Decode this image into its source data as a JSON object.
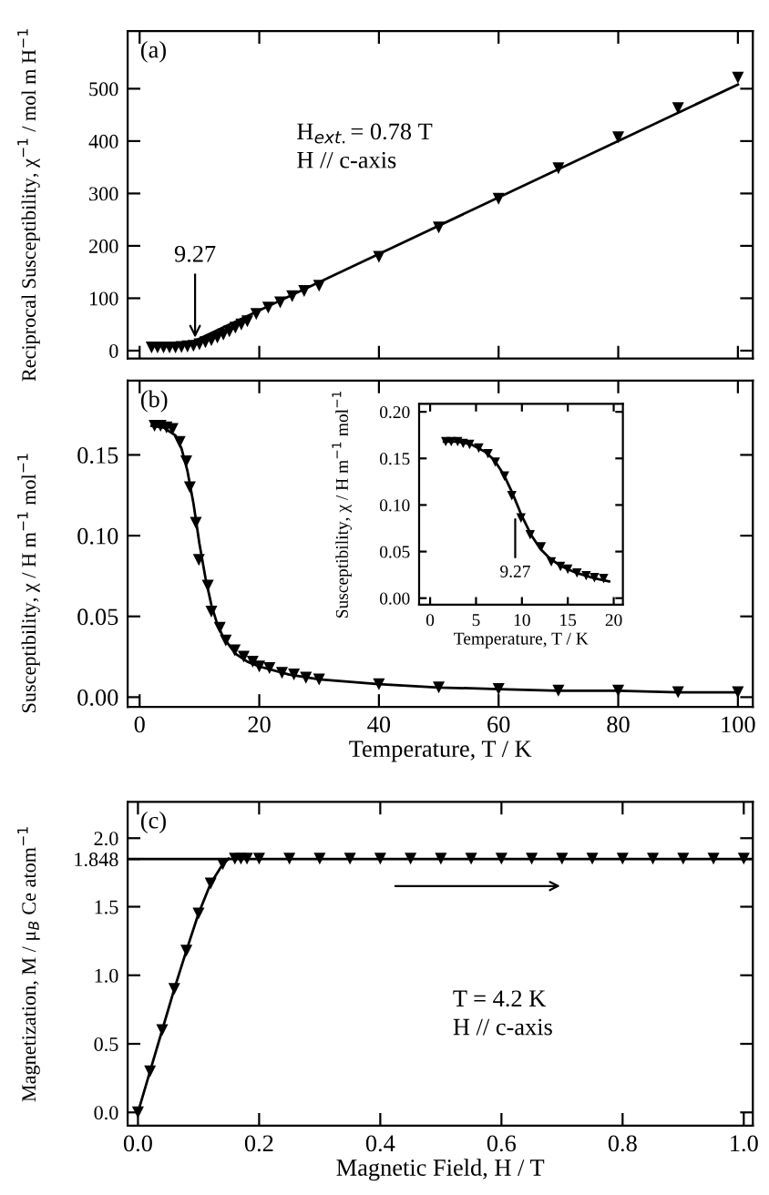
{
  "chart_data": [
    {
      "type": "scatter",
      "title": "(a)",
      "ylabel": "Reciprocal Susceptibility, χ$^{−1}$ / mol m H$^{−1}$",
      "xlim": [
        -2,
        102.5
      ],
      "ylim": [
        -15,
        610
      ],
      "xticks": [
        0,
        20,
        40,
        60,
        80,
        100
      ],
      "yticks": [
        0,
        100,
        200,
        300,
        400,
        500
      ],
      "tick_labels": "y",
      "grid": false,
      "legend": false,
      "annotations": [
        {
          "text": "9.27",
          "x": 9.27,
          "y": 15
        },
        "H$_{ext.}$= 0.78 T\nH // c-axis"
      ],
      "series": [
        {
          "marker": "triangle",
          "color": "#000000",
          "x": [
            2,
            3,
            4,
            5,
            6,
            7,
            8,
            9,
            10,
            11,
            12,
            13,
            14,
            15,
            16,
            17,
            18,
            19.5,
            21.5,
            23.5,
            25.5,
            27.5,
            30,
            40,
            50,
            60,
            70,
            80,
            90,
            100
          ],
          "values": [
            6,
            6,
            6,
            6,
            6,
            7,
            8,
            9,
            12,
            16,
            20,
            25,
            31,
            37,
            44,
            50,
            56,
            70,
            82,
            92,
            104,
            114,
            124,
            179,
            235,
            290,
            348,
            407,
            463,
            521
          ]
        },
        {
          "type": "line",
          "color": "#000000",
          "x": [
            8,
            100
          ],
          "values": [
            12,
            508
          ]
        }
      ]
    },
    {
      "type": "scatter",
      "title": "(b)",
      "xlabel": "Temperature, T / K",
      "ylabel": "Susceptibility, χ / H m$^{−1}$ mol$^{−1}$",
      "xlim": [
        -2,
        102.5
      ],
      "ylim": [
        -0.006,
        0.196
      ],
      "xticks": [
        0,
        20,
        40,
        60,
        80,
        100
      ],
      "yticks": [
        {
          "value": 0,
          "label": "0.00"
        },
        {
          "value": 0.05,
          "label": "0.05"
        },
        {
          "value": 0.1,
          "label": "0.10"
        },
        {
          "value": 0.15,
          "label": "0.15"
        }
      ],
      "grid": false,
      "legend": false,
      "series": [
        {
          "marker": "triangle",
          "color": "#000000",
          "x": [
            2.5,
            3.5,
            4.5,
            5.5,
            6.7,
            7.8,
            8.4,
            9.4,
            9.9,
            11.4,
            12,
            13.4,
            14.4,
            15.9,
            17.4,
            18.9,
            20,
            21.7,
            23.8,
            25.8,
            27.8,
            30,
            40,
            50,
            60,
            70,
            80,
            90,
            100
          ],
          "values": [
            0.168,
            0.168,
            0.167,
            0.166,
            0.158,
            0.146,
            0.13,
            0.108,
            0.085,
            0.069,
            0.053,
            0.043,
            0.035,
            0.029,
            0.025,
            0.022,
            0.019,
            0.018,
            0.015,
            0.014,
            0.012,
            0.011,
            0.008,
            0.006,
            0.005,
            0.004,
            0.004,
            0.003,
            0.003
          ]
        },
        {
          "type": "line",
          "color": "#000000",
          "x": [
            2,
            4,
            6,
            7,
            8,
            9,
            10,
            11,
            12,
            13,
            14,
            16,
            18,
            20,
            25,
            30,
            40,
            50,
            60,
            70,
            80,
            90,
            100
          ],
          "values": [
            0.168,
            0.167,
            0.162,
            0.154,
            0.14,
            0.12,
            0.095,
            0.074,
            0.057,
            0.045,
            0.037,
            0.027,
            0.022,
            0.019,
            0.014,
            0.011,
            0.008,
            0.006,
            0.005,
            0.004,
            0.004,
            0.003,
            0.003
          ]
        }
      ]
    },
    {
      "type": "scatter",
      "xlabel": "Temperature, T / K",
      "ylabel": "Susceptibility, χ / H m$^{−1}$ mol$^{−1}$",
      "xlim": [
        -1.2,
        21
      ],
      "ylim": [
        -0.007,
        0.2085
      ],
      "xticks": [
        0,
        5,
        10,
        15,
        20
      ],
      "yticks": [
        {
          "value": 0,
          "label": "0.00"
        },
        {
          "value": 0.05,
          "label": "0.05"
        },
        {
          "value": 0.1,
          "label": "0.10"
        },
        {
          "value": 0.15,
          "label": "0.15"
        },
        {
          "value": 0.2,
          "label": "0.20"
        }
      ],
      "grid": false,
      "legend": false,
      "annotations": [
        {
          "text": "9.27",
          "x": 9.27,
          "y": 0.09
        }
      ],
      "series": [
        {
          "marker": "triangle",
          "color": "#000000",
          "x": [
            1.7,
            2.3,
            3.0,
            3.6,
            4.3,
            5.3,
            6.3,
            7.1,
            8.1,
            8.9,
            9.9,
            10.9,
            12.1,
            13.2,
            14.2,
            15.0,
            16.0,
            17.0,
            17.9,
            18.9
          ],
          "values": [
            0.168,
            0.168,
            0.168,
            0.166,
            0.165,
            0.161,
            0.155,
            0.146,
            0.131,
            0.11,
            0.086,
            0.068,
            0.055,
            0.039,
            0.034,
            0.031,
            0.027,
            0.024,
            0.022,
            0.021
          ]
        },
        {
          "type": "line",
          "color": "#000000",
          "x": [
            1.5,
            3,
            4.5,
            6,
            7,
            8,
            9,
            10,
            11,
            12,
            13,
            14,
            15,
            16,
            17,
            18,
            19.5
          ],
          "values": [
            0.168,
            0.168,
            0.165,
            0.157,
            0.148,
            0.133,
            0.112,
            0.088,
            0.068,
            0.053,
            0.043,
            0.036,
            0.031,
            0.027,
            0.024,
            0.021,
            0.018
          ]
        }
      ]
    },
    {
      "type": "scatter",
      "title": "(c)",
      "xlabel": "Magnetic Field, H / T",
      "ylabel": "Magnetization, M / μ$_{B}$ Ce atom$^{−1}$",
      "xlim": [
        -0.017,
        1.015
      ],
      "ylim": [
        -0.097,
        2.265
      ],
      "xticks": [
        {
          "value": 0,
          "label": "0.0"
        },
        0.2,
        0.4,
        0.6,
        0.8,
        {
          "value": 1,
          "label": "1.0"
        }
      ],
      "yticks": [
        {
          "value": 0,
          "label": "0.0"
        },
        0.5,
        {
          "value": 1,
          "label": "1.0"
        },
        1.5,
        1.848,
        {
          "value": 2,
          "label": "2.0"
        }
      ],
      "grid": false,
      "legend": false,
      "annotations": [
        "T = 4.2 K\nH // c-axis"
      ],
      "ref_lines": [
        {
          "axis": "y",
          "value": 1.848,
          "color": "#000000"
        }
      ],
      "series": [
        {
          "marker": "triangle",
          "color": "#000000",
          "x": [
            0,
            0.02,
            0.04,
            0.06,
            0.08,
            0.1,
            0.12,
            0.14,
            0.16,
            0.17,
            0.18,
            0.2,
            0.25,
            0.3,
            0.35,
            0.4,
            0.45,
            0.5,
            0.55,
            0.6,
            0.65,
            0.7,
            0.75,
            0.8,
            0.85,
            0.9,
            0.95,
            1.0
          ],
          "values": [
            0,
            0.3,
            0.6,
            0.9,
            1.18,
            1.45,
            1.67,
            1.81,
            1.85,
            1.85,
            1.85,
            1.85,
            1.85,
            1.85,
            1.85,
            1.85,
            1.85,
            1.85,
            1.85,
            1.85,
            1.85,
            1.85,
            1.85,
            1.85,
            1.85,
            1.85,
            1.85,
            1.85
          ]
        },
        {
          "type": "line",
          "color": "#000000",
          "x": [
            0,
            0.02,
            0.04,
            0.06,
            0.08,
            0.1,
            0.12,
            0.14,
            0.15
          ],
          "values": [
            0,
            0.3,
            0.6,
            0.9,
            1.18,
            1.45,
            1.67,
            1.81,
            1.85
          ]
        }
      ]
    }
  ]
}
